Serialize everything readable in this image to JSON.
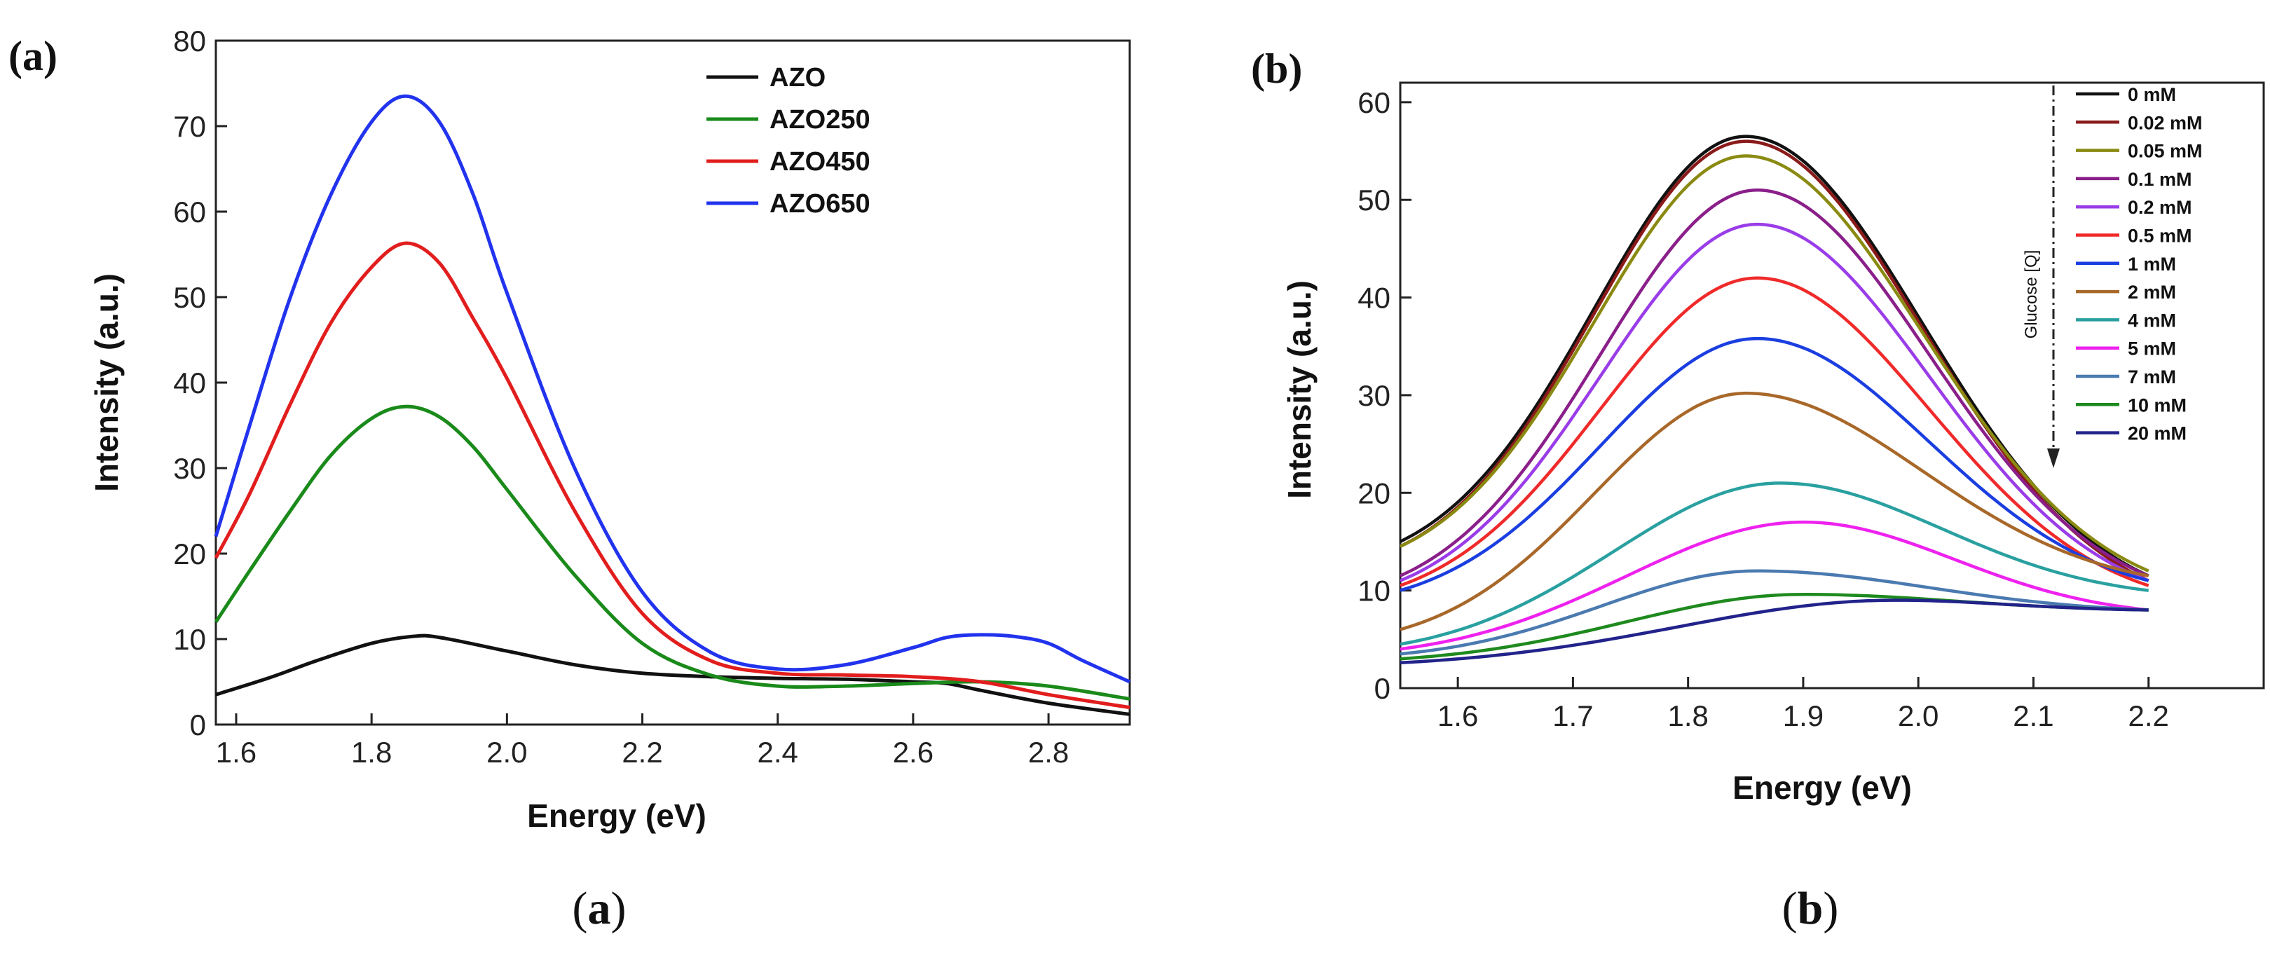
{
  "chart_data": [
    {
      "type": "line",
      "panel_label": "(a)",
      "caption": {
        "open": "(",
        "letter": "a",
        "close": ")"
      },
      "xlabel": "Energy (eV)",
      "ylabel": "Intensity (a.u.)",
      "xlim": [
        1.57,
        2.92
      ],
      "ylim": [
        0,
        80
      ],
      "xticks": [
        1.6,
        1.8,
        2.0,
        2.2,
        2.4,
        2.6,
        2.8
      ],
      "xtick_labels": [
        "1.6",
        "1.8",
        "2.0",
        "2.2",
        "2.4",
        "2.6",
        "2.8"
      ],
      "yticks": [
        0,
        10,
        20,
        30,
        40,
        50,
        60,
        70,
        80
      ],
      "ytick_labels": [
        "0",
        "10",
        "20",
        "30",
        "40",
        "50",
        "60",
        "70",
        "80"
      ],
      "legend_position": "top-right",
      "series": [
        {
          "name": "AZO",
          "color": "#111111",
          "x": [
            1.57,
            1.65,
            1.72,
            1.8,
            1.86,
            1.9,
            2.0,
            2.1,
            2.2,
            2.3,
            2.4,
            2.5,
            2.6,
            2.65,
            2.7,
            2.8,
            2.92
          ],
          "y": [
            3.5,
            5.5,
            7.5,
            9.5,
            10.3,
            10.2,
            8.6,
            7.0,
            6.0,
            5.6,
            5.4,
            5.3,
            5.0,
            4.8,
            4.0,
            2.5,
            1.2
          ]
        },
        {
          "name": "AZO250",
          "color": "#1a8a1a",
          "x": [
            1.57,
            1.62,
            1.68,
            1.74,
            1.8,
            1.85,
            1.9,
            1.95,
            2.0,
            2.1,
            2.2,
            2.3,
            2.4,
            2.5,
            2.6,
            2.7,
            2.8,
            2.92
          ],
          "y": [
            12.0,
            18.0,
            25.0,
            31.5,
            35.8,
            37.2,
            36.0,
            32.5,
            27.5,
            17.5,
            9.5,
            5.8,
            4.5,
            4.5,
            4.8,
            5.0,
            4.5,
            3.0
          ]
        },
        {
          "name": "AZO450",
          "color": "#e21d1d",
          "x": [
            1.57,
            1.62,
            1.68,
            1.74,
            1.8,
            1.85,
            1.9,
            1.95,
            2.0,
            2.1,
            2.2,
            2.3,
            2.4,
            2.5,
            2.6,
            2.7,
            2.8,
            2.92
          ],
          "y": [
            19.5,
            27.0,
            37.5,
            47.0,
            53.5,
            56.3,
            54.0,
            47.5,
            40.5,
            25.0,
            13.0,
            7.5,
            6.0,
            5.8,
            5.6,
            5.0,
            3.5,
            2.0
          ]
        },
        {
          "name": "AZO650",
          "color": "#2233ee",
          "x": [
            1.57,
            1.62,
            1.68,
            1.74,
            1.8,
            1.85,
            1.9,
            1.95,
            2.0,
            2.1,
            2.2,
            2.3,
            2.4,
            2.5,
            2.6,
            2.65,
            2.7,
            2.75,
            2.8,
            2.85,
            2.92
          ],
          "y": [
            22.0,
            35.0,
            50.0,
            62.0,
            70.5,
            73.5,
            70.5,
            62.0,
            50.5,
            30.0,
            15.5,
            8.5,
            6.5,
            7.0,
            9.0,
            10.2,
            10.5,
            10.3,
            9.5,
            7.5,
            5.0
          ]
        }
      ]
    },
    {
      "type": "line",
      "panel_label": "(b)",
      "caption": {
        "open": "(",
        "letter": "b",
        "close": ")"
      },
      "xlabel": "Energy (eV)",
      "ylabel": "Intensity (a.u.)",
      "xlim": [
        1.55,
        2.3
      ],
      "ylim": [
        0,
        62
      ],
      "xticks": [
        1.6,
        1.7,
        1.8,
        1.9,
        2.0,
        2.1,
        2.2
      ],
      "xtick_labels": [
        "1.6",
        "1.7",
        "1.8",
        "1.9",
        "2.0",
        "2.1",
        "2.2"
      ],
      "yticks": [
        0,
        10,
        20,
        30,
        40,
        50,
        60
      ],
      "ytick_labels": [
        "0",
        "10",
        "20",
        "30",
        "40",
        "50",
        "60"
      ],
      "legend_position": "top-right",
      "annotation": "Glucose [Q]",
      "series": [
        {
          "name": "0 mM",
          "color": "#111111",
          "start": 15.0,
          "peak": 56.5,
          "peak_x": 1.85,
          "end": 11.5
        },
        {
          "name": "0.02 mM",
          "color": "#8b1a1a",
          "start": 14.5,
          "peak": 56.0,
          "peak_x": 1.85,
          "end": 11.0
        },
        {
          "name": "0.05 mM",
          "color": "#8a8a12",
          "start": 14.5,
          "peak": 54.5,
          "peak_x": 1.85,
          "end": 12.0
        },
        {
          "name": "0.1 mM",
          "color": "#8a1f8a",
          "start": 11.5,
          "peak": 51.0,
          "peak_x": 1.86,
          "end": 11.5
        },
        {
          "name": "0.2 mM",
          "color": "#9a3de8",
          "start": 11.0,
          "peak": 47.5,
          "peak_x": 1.86,
          "end": 11.0
        },
        {
          "name": "0.5 mM",
          "color": "#f02a2a",
          "start": 10.5,
          "peak": 42.0,
          "peak_x": 1.86,
          "end": 10.5
        },
        {
          "name": "1 mM",
          "color": "#1a3ee0",
          "start": 10.0,
          "peak": 35.8,
          "peak_x": 1.86,
          "end": 11.0
        },
        {
          "name": "2 mM",
          "color": "#a8682a",
          "start": 6.0,
          "peak": 30.2,
          "peak_x": 1.85,
          "end": 11.5
        },
        {
          "name": "4 mM",
          "color": "#2aa0a0",
          "start": 4.5,
          "peak": 21.0,
          "peak_x": 1.88,
          "end": 10.0
        },
        {
          "name": "5 mM",
          "color": "#ee22ee",
          "start": 4.0,
          "peak": 17.0,
          "peak_x": 1.9,
          "end": 8.0
        },
        {
          "name": "7 mM",
          "color": "#4a7ab0",
          "start": 3.5,
          "peak": 12.0,
          "peak_x": 1.86,
          "end": 8.0
        },
        {
          "name": "10 mM",
          "color": "#1e8a1e",
          "start": 3.0,
          "peak": 9.6,
          "peak_x": 1.9,
          "end": 8.0
        },
        {
          "name": "20 mM",
          "color": "#22238a",
          "start": 2.6,
          "peak": 9.0,
          "peak_x": 1.98,
          "end": 8.0
        }
      ]
    }
  ]
}
